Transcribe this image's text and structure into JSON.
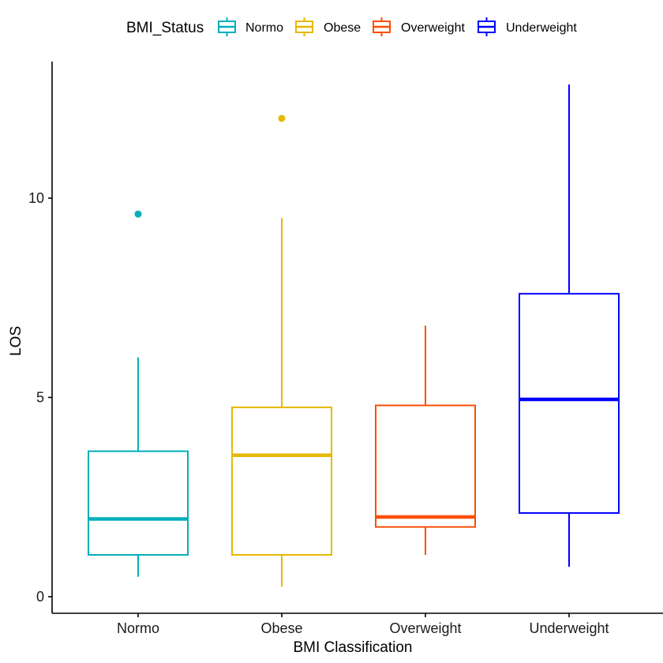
{
  "chart_data": {
    "type": "boxplot",
    "xlabel": "BMI Classification",
    "ylabel": "LOS",
    "ylim": [
      -0.4,
      13.3
    ],
    "yticks": [
      0,
      5,
      10
    ],
    "ytick_labels": [
      "0",
      "5",
      "10"
    ],
    "grid": false,
    "legend": {
      "title": "BMI_Status",
      "position": "top",
      "entries": [
        "Normo",
        "Obese",
        "Overweight",
        "Underweight"
      ]
    },
    "categories": [
      "Normo",
      "Obese",
      "Overweight",
      "Underweight"
    ],
    "series": [
      {
        "name": "Normo",
        "color": "#00AFBB",
        "whisker_low": 0.5,
        "q1": 1.05,
        "median": 1.95,
        "q3": 3.65,
        "whisker_high": 6.0,
        "outliers": [
          9.6
        ]
      },
      {
        "name": "Obese",
        "color": "#E7B800",
        "whisker_low": 0.25,
        "q1": 1.05,
        "median": 3.55,
        "q3": 4.75,
        "whisker_high": 9.5,
        "outliers": [
          12.0
        ]
      },
      {
        "name": "Overweight",
        "color": "#FC4E07",
        "whisker_low": 1.05,
        "q1": 1.75,
        "median": 2.0,
        "q3": 4.8,
        "whisker_high": 6.8,
        "outliers": []
      },
      {
        "name": "Underweight",
        "color": "#0000FF",
        "whisker_low": 0.75,
        "q1": 2.1,
        "median": 4.95,
        "q3": 7.6,
        "whisker_high": 12.85,
        "outliers": []
      }
    ]
  }
}
